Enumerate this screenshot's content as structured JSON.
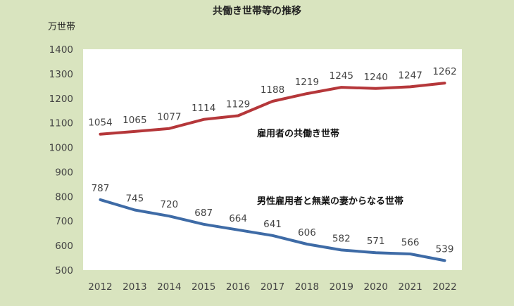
{
  "chart_data": {
    "type": "line",
    "title": "共働き世帯等の推移",
    "ylabel": "万世帯",
    "xlabel": "",
    "categories": [
      "2012",
      "2013",
      "2014",
      "2015",
      "2016",
      "2017",
      "2018",
      "2019",
      "2020",
      "2021",
      "2022"
    ],
    "ylim": [
      500,
      1400
    ],
    "yticks": [
      500,
      600,
      700,
      800,
      900,
      1000,
      1100,
      1200,
      1300,
      1400
    ],
    "grid": false,
    "legend": "none",
    "series": [
      {
        "name": "雇用者の共働き世帯",
        "color": "#b5373a",
        "values": [
          1054,
          1065,
          1077,
          1114,
          1129,
          1188,
          1219,
          1245,
          1240,
          1247,
          1262
        ]
      },
      {
        "name": "男性雇用者と無業の妻からなる世帯",
        "color": "#3e6ba6",
        "values": [
          787,
          745,
          720,
          687,
          664,
          641,
          606,
          582,
          571,
          566,
          539
        ]
      }
    ]
  }
}
